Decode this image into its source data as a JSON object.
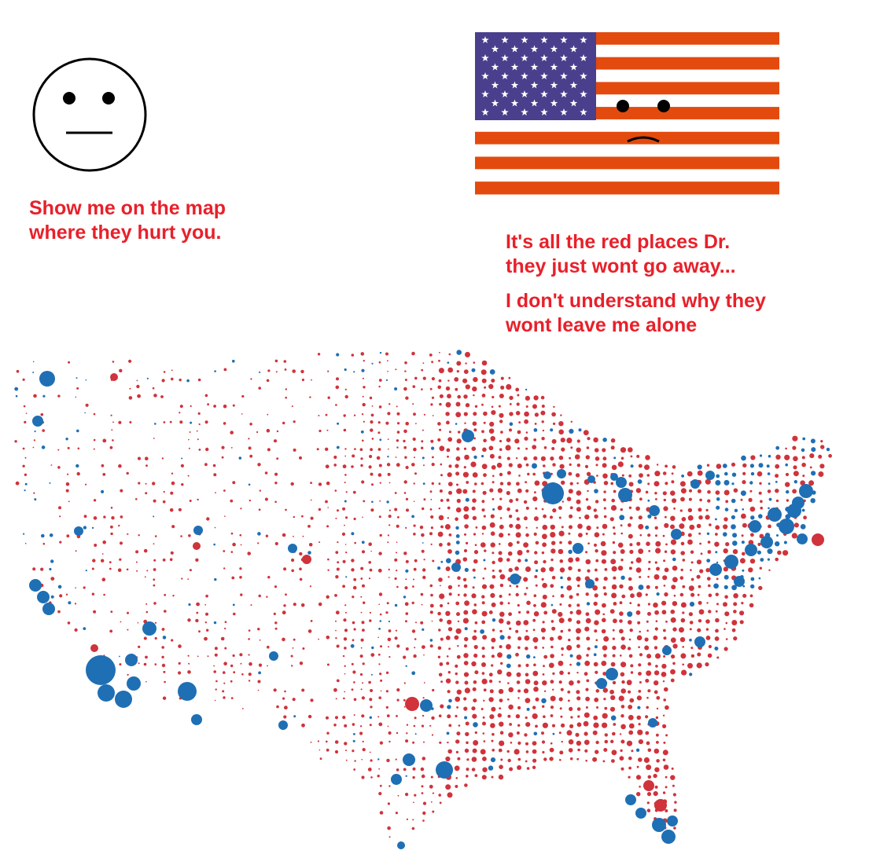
{
  "captions": {
    "left": "Show me on the map\nwhere they hurt you.",
    "right_line1": "It's all the red places Dr.\nthey just wont go away...",
    "right_line2": "I don't understand why they\nwont leave me alone"
  },
  "icons": {
    "face": "neutral-face-icon",
    "flag": "sad-american-flag-icon",
    "map": "us-bubble-map"
  },
  "colors": {
    "text_red": "#e8202a",
    "map_red": "#d0333b",
    "map_blue": "#1f6fb4",
    "flag_red": "#e34a0e",
    "flag_blue": "#4a3f8c"
  }
}
